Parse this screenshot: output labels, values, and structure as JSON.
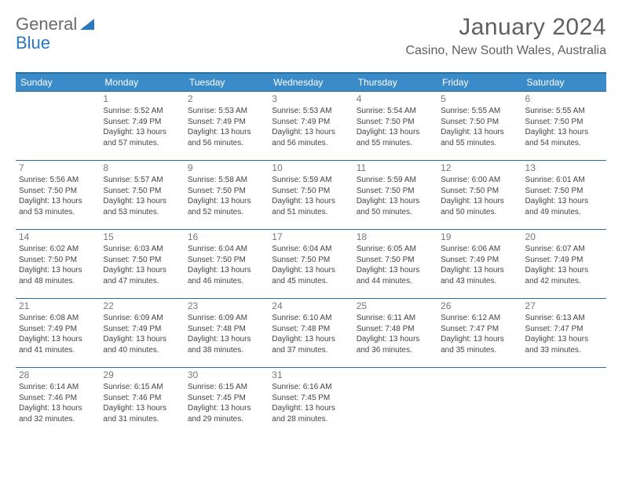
{
  "brand": {
    "part1": "General",
    "part2": "Blue"
  },
  "title": "January 2024",
  "location": "Casino, New South Wales, Australia",
  "colors": {
    "header_bg": "#3b8bc8",
    "header_border": "#2a6fa3",
    "text": "#444444",
    "muted": "#777777",
    "brand_gray": "#6a6a6a",
    "brand_blue": "#2a78bd"
  },
  "weekdays": [
    "Sunday",
    "Monday",
    "Tuesday",
    "Wednesday",
    "Thursday",
    "Friday",
    "Saturday"
  ],
  "weeks": [
    [
      null,
      {
        "d": "1",
        "sr": "Sunrise: 5:52 AM",
        "ss": "Sunset: 7:49 PM",
        "dl1": "Daylight: 13 hours",
        "dl2": "and 57 minutes."
      },
      {
        "d": "2",
        "sr": "Sunrise: 5:53 AM",
        "ss": "Sunset: 7:49 PM",
        "dl1": "Daylight: 13 hours",
        "dl2": "and 56 minutes."
      },
      {
        "d": "3",
        "sr": "Sunrise: 5:53 AM",
        "ss": "Sunset: 7:49 PM",
        "dl1": "Daylight: 13 hours",
        "dl2": "and 56 minutes."
      },
      {
        "d": "4",
        "sr": "Sunrise: 5:54 AM",
        "ss": "Sunset: 7:50 PM",
        "dl1": "Daylight: 13 hours",
        "dl2": "and 55 minutes."
      },
      {
        "d": "5",
        "sr": "Sunrise: 5:55 AM",
        "ss": "Sunset: 7:50 PM",
        "dl1": "Daylight: 13 hours",
        "dl2": "and 55 minutes."
      },
      {
        "d": "6",
        "sr": "Sunrise: 5:55 AM",
        "ss": "Sunset: 7:50 PM",
        "dl1": "Daylight: 13 hours",
        "dl2": "and 54 minutes."
      }
    ],
    [
      {
        "d": "7",
        "sr": "Sunrise: 5:56 AM",
        "ss": "Sunset: 7:50 PM",
        "dl1": "Daylight: 13 hours",
        "dl2": "and 53 minutes."
      },
      {
        "d": "8",
        "sr": "Sunrise: 5:57 AM",
        "ss": "Sunset: 7:50 PM",
        "dl1": "Daylight: 13 hours",
        "dl2": "and 53 minutes."
      },
      {
        "d": "9",
        "sr": "Sunrise: 5:58 AM",
        "ss": "Sunset: 7:50 PM",
        "dl1": "Daylight: 13 hours",
        "dl2": "and 52 minutes."
      },
      {
        "d": "10",
        "sr": "Sunrise: 5:59 AM",
        "ss": "Sunset: 7:50 PM",
        "dl1": "Daylight: 13 hours",
        "dl2": "and 51 minutes."
      },
      {
        "d": "11",
        "sr": "Sunrise: 5:59 AM",
        "ss": "Sunset: 7:50 PM",
        "dl1": "Daylight: 13 hours",
        "dl2": "and 50 minutes."
      },
      {
        "d": "12",
        "sr": "Sunrise: 6:00 AM",
        "ss": "Sunset: 7:50 PM",
        "dl1": "Daylight: 13 hours",
        "dl2": "and 50 minutes."
      },
      {
        "d": "13",
        "sr": "Sunrise: 6:01 AM",
        "ss": "Sunset: 7:50 PM",
        "dl1": "Daylight: 13 hours",
        "dl2": "and 49 minutes."
      }
    ],
    [
      {
        "d": "14",
        "sr": "Sunrise: 6:02 AM",
        "ss": "Sunset: 7:50 PM",
        "dl1": "Daylight: 13 hours",
        "dl2": "and 48 minutes."
      },
      {
        "d": "15",
        "sr": "Sunrise: 6:03 AM",
        "ss": "Sunset: 7:50 PM",
        "dl1": "Daylight: 13 hours",
        "dl2": "and 47 minutes."
      },
      {
        "d": "16",
        "sr": "Sunrise: 6:04 AM",
        "ss": "Sunset: 7:50 PM",
        "dl1": "Daylight: 13 hours",
        "dl2": "and 46 minutes."
      },
      {
        "d": "17",
        "sr": "Sunrise: 6:04 AM",
        "ss": "Sunset: 7:50 PM",
        "dl1": "Daylight: 13 hours",
        "dl2": "and 45 minutes."
      },
      {
        "d": "18",
        "sr": "Sunrise: 6:05 AM",
        "ss": "Sunset: 7:50 PM",
        "dl1": "Daylight: 13 hours",
        "dl2": "and 44 minutes."
      },
      {
        "d": "19",
        "sr": "Sunrise: 6:06 AM",
        "ss": "Sunset: 7:49 PM",
        "dl1": "Daylight: 13 hours",
        "dl2": "and 43 minutes."
      },
      {
        "d": "20",
        "sr": "Sunrise: 6:07 AM",
        "ss": "Sunset: 7:49 PM",
        "dl1": "Daylight: 13 hours",
        "dl2": "and 42 minutes."
      }
    ],
    [
      {
        "d": "21",
        "sr": "Sunrise: 6:08 AM",
        "ss": "Sunset: 7:49 PM",
        "dl1": "Daylight: 13 hours",
        "dl2": "and 41 minutes."
      },
      {
        "d": "22",
        "sr": "Sunrise: 6:09 AM",
        "ss": "Sunset: 7:49 PM",
        "dl1": "Daylight: 13 hours",
        "dl2": "and 40 minutes."
      },
      {
        "d": "23",
        "sr": "Sunrise: 6:09 AM",
        "ss": "Sunset: 7:48 PM",
        "dl1": "Daylight: 13 hours",
        "dl2": "and 38 minutes."
      },
      {
        "d": "24",
        "sr": "Sunrise: 6:10 AM",
        "ss": "Sunset: 7:48 PM",
        "dl1": "Daylight: 13 hours",
        "dl2": "and 37 minutes."
      },
      {
        "d": "25",
        "sr": "Sunrise: 6:11 AM",
        "ss": "Sunset: 7:48 PM",
        "dl1": "Daylight: 13 hours",
        "dl2": "and 36 minutes."
      },
      {
        "d": "26",
        "sr": "Sunrise: 6:12 AM",
        "ss": "Sunset: 7:47 PM",
        "dl1": "Daylight: 13 hours",
        "dl2": "and 35 minutes."
      },
      {
        "d": "27",
        "sr": "Sunrise: 6:13 AM",
        "ss": "Sunset: 7:47 PM",
        "dl1": "Daylight: 13 hours",
        "dl2": "and 33 minutes."
      }
    ],
    [
      {
        "d": "28",
        "sr": "Sunrise: 6:14 AM",
        "ss": "Sunset: 7:46 PM",
        "dl1": "Daylight: 13 hours",
        "dl2": "and 32 minutes."
      },
      {
        "d": "29",
        "sr": "Sunrise: 6:15 AM",
        "ss": "Sunset: 7:46 PM",
        "dl1": "Daylight: 13 hours",
        "dl2": "and 31 minutes."
      },
      {
        "d": "30",
        "sr": "Sunrise: 6:15 AM",
        "ss": "Sunset: 7:45 PM",
        "dl1": "Daylight: 13 hours",
        "dl2": "and 29 minutes."
      },
      {
        "d": "31",
        "sr": "Sunrise: 6:16 AM",
        "ss": "Sunset: 7:45 PM",
        "dl1": "Daylight: 13 hours",
        "dl2": "and 28 minutes."
      },
      null,
      null,
      null
    ]
  ]
}
